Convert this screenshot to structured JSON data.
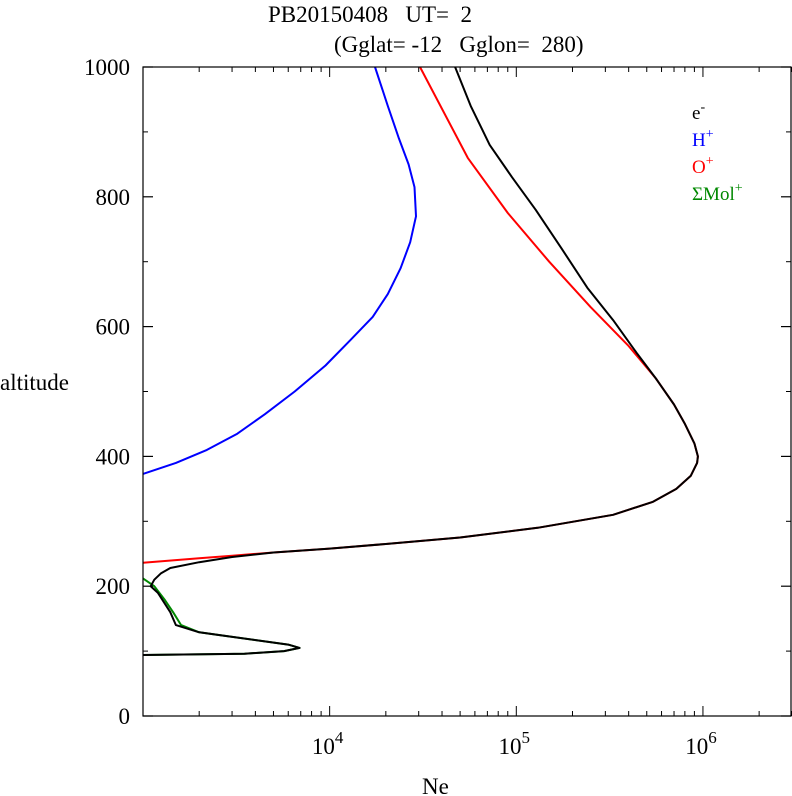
{
  "chart_data": {
    "type": "line",
    "title_line1": "PB20150408   UT=  2",
    "title_line2": "(Gglat= -12   Gglon=  280)",
    "xlabel": "Ne",
    "ylabel": "altitude",
    "x_scale": "log",
    "xlim": [
      1000,
      3000000
    ],
    "ylim": [
      0,
      1000
    ],
    "x_ticks": [
      {
        "value": 10000,
        "base": "10",
        "exp": "4"
      },
      {
        "value": 100000,
        "base": "10",
        "exp": "5"
      },
      {
        "value": 1000000,
        "base": "10",
        "exp": "6"
      }
    ],
    "y_ticks": [
      {
        "value": 0,
        "label": "0"
      },
      {
        "value": 200,
        "label": "200"
      },
      {
        "value": 400,
        "label": "400"
      },
      {
        "value": 600,
        "label": "600"
      },
      {
        "value": 800,
        "label": "800"
      },
      {
        "value": 1000,
        "label": "1000"
      }
    ],
    "legend_position": "top-right",
    "series": [
      {
        "name": "e-",
        "label_base": "e",
        "label_sup": "-",
        "color": "#000000",
        "points": [
          [
            1000,
            94
          ],
          [
            3500,
            96
          ],
          [
            5700,
            100
          ],
          [
            6900,
            105
          ],
          [
            6000,
            110
          ],
          [
            2000,
            129
          ],
          [
            1500,
            140
          ],
          [
            1400,
            160
          ],
          [
            1200,
            190
          ],
          [
            1100,
            200
          ],
          [
            1150,
            210
          ],
          [
            1250,
            220
          ],
          [
            1400,
            228
          ],
          [
            2000,
            237
          ],
          [
            3000,
            245
          ],
          [
            5000,
            252
          ],
          [
            10000,
            258
          ],
          [
            20000,
            265
          ],
          [
            50000,
            275
          ],
          [
            130000,
            290
          ],
          [
            330000,
            310
          ],
          [
            540000,
            330
          ],
          [
            720000,
            350
          ],
          [
            860000,
            370
          ],
          [
            930000,
            390
          ],
          [
            940000,
            400
          ],
          [
            900000,
            420
          ],
          [
            800000,
            450
          ],
          [
            700000,
            480
          ],
          [
            560000,
            520
          ],
          [
            440000,
            560
          ],
          [
            330000,
            610
          ],
          [
            240000,
            660
          ],
          [
            175000,
            720
          ],
          [
            127000,
            780
          ],
          [
            95000,
            830
          ],
          [
            72000,
            880
          ],
          [
            57000,
            940
          ],
          [
            47000,
            1000
          ]
        ]
      },
      {
        "name": "H+",
        "label_base": "H",
        "label_sup": "+",
        "color": "#0000ff",
        "points": [
          [
            1000,
            373
          ],
          [
            1500,
            390
          ],
          [
            2200,
            410
          ],
          [
            3200,
            435
          ],
          [
            4500,
            465
          ],
          [
            6500,
            500
          ],
          [
            9500,
            540
          ],
          [
            13000,
            580
          ],
          [
            17000,
            615
          ],
          [
            20500,
            650
          ],
          [
            24000,
            690
          ],
          [
            27000,
            730
          ],
          [
            29000,
            770
          ],
          [
            28500,
            815
          ],
          [
            26500,
            850
          ],
          [
            23500,
            890
          ],
          [
            20500,
            940
          ],
          [
            17500,
            1000
          ]
        ]
      },
      {
        "name": "O+",
        "label_base": "O",
        "label_sup": "+",
        "color": "#ff0000",
        "points": [
          [
            1000,
            236
          ],
          [
            2000,
            243
          ],
          [
            3000,
            247
          ],
          [
            5000,
            252
          ],
          [
            10000,
            258
          ],
          [
            20000,
            265
          ],
          [
            50000,
            275
          ],
          [
            130000,
            290
          ],
          [
            330000,
            310
          ],
          [
            540000,
            330
          ],
          [
            720000,
            350
          ],
          [
            860000,
            370
          ],
          [
            930000,
            390
          ],
          [
            940000,
            400
          ],
          [
            900000,
            420
          ],
          [
            800000,
            450
          ],
          [
            700000,
            480
          ],
          [
            560000,
            520
          ],
          [
            400000,
            570
          ],
          [
            250000,
            630
          ],
          [
            150000,
            700
          ],
          [
            90000,
            775
          ],
          [
            55000,
            860
          ],
          [
            30500,
            1000
          ]
        ]
      },
      {
        "name": "ΣMol+",
        "label_base": "ΣMol",
        "label_sup": "+",
        "color": "#008800",
        "points": [
          [
            1000,
            212
          ],
          [
            1150,
            200
          ],
          [
            1300,
            180
          ],
          [
            1450,
            160
          ],
          [
            1600,
            140
          ],
          [
            2000,
            129
          ],
          [
            6000,
            110
          ],
          [
            6900,
            105
          ],
          [
            5700,
            100
          ],
          [
            3500,
            96
          ],
          [
            1000,
            94
          ]
        ]
      }
    ]
  }
}
